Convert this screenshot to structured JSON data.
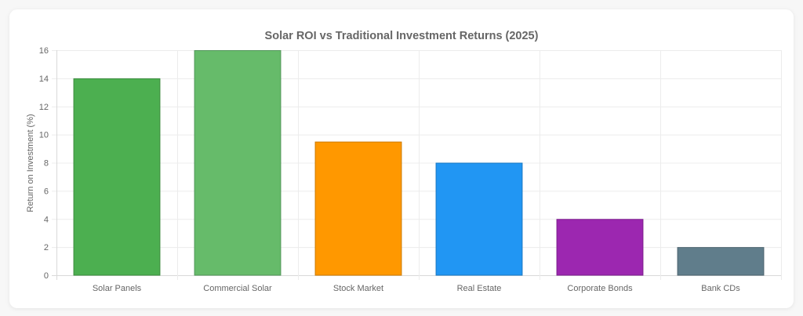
{
  "chart_data": {
    "type": "bar",
    "title": "Solar ROI vs Traditional Investment Returns (2025)",
    "xlabel": "",
    "ylabel": "Return on Investment (%)",
    "ylim": [
      0,
      16
    ],
    "yticks": [
      0,
      2,
      4,
      6,
      8,
      10,
      12,
      14,
      16
    ],
    "grid": true,
    "legend": "none",
    "categories": [
      "Solar Panels",
      "Commercial Solar",
      "Stock Market",
      "Real Estate",
      "Corporate Bonds",
      "Bank CDs"
    ],
    "values": [
      14,
      16,
      9.5,
      8,
      4,
      2
    ],
    "colors": [
      "#4caf50",
      "#66bb6a",
      "#ff9800",
      "#2196f3",
      "#9c27b0",
      "#607d8b"
    ],
    "border_colors": [
      "#3d8c40",
      "#52965a",
      "#cc7a00",
      "#1a78c2",
      "#7d1f8d",
      "#4d646f"
    ]
  }
}
